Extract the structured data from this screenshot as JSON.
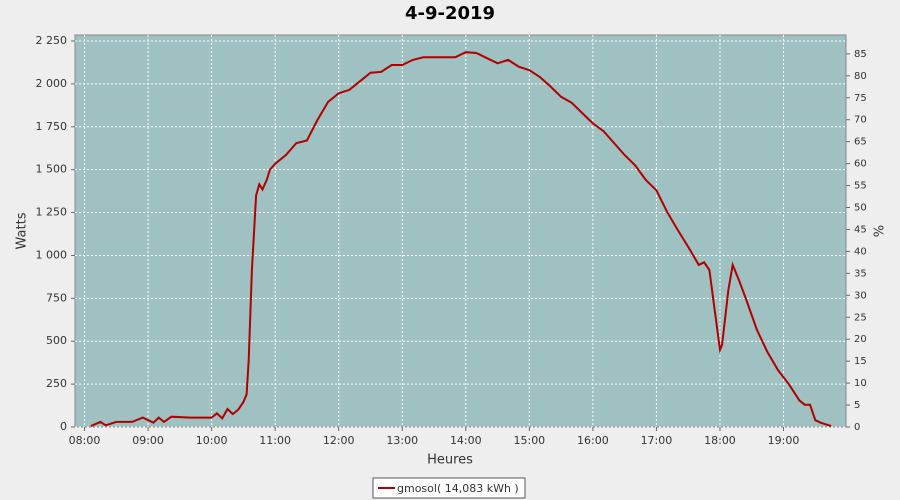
{
  "chart_data": {
    "type": "line",
    "title": "4-9-2019",
    "x_label": "Heures",
    "y_label": "Watts",
    "y2_label": "%",
    "x": [
      486,
      495,
      500,
      510,
      525,
      535,
      545,
      550,
      555,
      562,
      580,
      600,
      605,
      610,
      615,
      620,
      625,
      630,
      633,
      635,
      638,
      642,
      645,
      648,
      652,
      655,
      660,
      670,
      680,
      690,
      700,
      710,
      720,
      730,
      740,
      750,
      760,
      770,
      780,
      790,
      800,
      820,
      830,
      840,
      850,
      860,
      870,
      880,
      890,
      900,
      910,
      920,
      930,
      940,
      950,
      960,
      970,
      980,
      990,
      1000,
      1010,
      1020,
      1030,
      1040,
      1050,
      1060,
      1065,
      1070,
      1075,
      1080,
      1082,
      1088,
      1092,
      1098,
      1105,
      1115,
      1125,
      1135,
      1145,
      1155,
      1160,
      1165,
      1170,
      1175,
      1185
    ],
    "series": [
      {
        "name": "gmosol( 14,083 kWh )",
        "color": "#b00000",
        "values": [
          5,
          30,
          10,
          30,
          30,
          55,
          25,
          55,
          30,
          60,
          55,
          55,
          80,
          50,
          105,
          75,
          100,
          145,
          190,
          390,
          915,
          1350,
          1415,
          1385,
          1440,
          1500,
          1535,
          1585,
          1655,
          1670,
          1790,
          1895,
          1945,
          1965,
          2015,
          2065,
          2070,
          2110,
          2110,
          2140,
          2155,
          2155,
          2155,
          2185,
          2180,
          2150,
          2120,
          2140,
          2100,
          2080,
          2040,
          1985,
          1925,
          1890,
          1830,
          1770,
          1725,
          1655,
          1585,
          1525,
          1440,
          1380,
          1255,
          1150,
          1050,
          945,
          960,
          915,
          680,
          450,
          480,
          800,
          945,
          855,
          740,
          565,
          435,
          330,
          250,
          155,
          130,
          130,
          40,
          25,
          5
        ]
      }
    ],
    "xlim": [
      471,
      1199
    ],
    "xticks": [
      {
        "value": 480,
        "label": "08:00"
      },
      {
        "value": 540,
        "label": "09:00"
      },
      {
        "value": 600,
        "label": "10:00"
      },
      {
        "value": 660,
        "label": "11:00"
      },
      {
        "value": 720,
        "label": "12:00"
      },
      {
        "value": 780,
        "label": "13:00"
      },
      {
        "value": 840,
        "label": "14:00"
      },
      {
        "value": 900,
        "label": "15:00"
      },
      {
        "value": 960,
        "label": "16:00"
      },
      {
        "value": 1020,
        "label": "17:00"
      },
      {
        "value": 1080,
        "label": "18:00"
      },
      {
        "value": 1140,
        "label": "19:00"
      }
    ],
    "ylim": [
      0,
      2285
    ],
    "yticks": [
      0,
      250,
      500,
      750,
      {
        "value": 1000,
        "label": "1 000"
      },
      {
        "value": 1250,
        "label": "1 250"
      },
      {
        "value": 1500,
        "label": "1 500"
      },
      {
        "value": 1750,
        "label": "1 750"
      },
      {
        "value": 2000,
        "label": "2 000"
      },
      {
        "value": 2250,
        "label": "2 250"
      }
    ],
    "y2lim": [
      0,
      89.3
    ],
    "y2ticks": [
      0,
      5,
      10,
      15,
      20,
      25,
      30,
      35,
      40,
      45,
      50,
      55,
      60,
      65,
      70,
      75,
      80,
      85
    ],
    "grid": true,
    "plot_background": "#9fc1c1"
  }
}
